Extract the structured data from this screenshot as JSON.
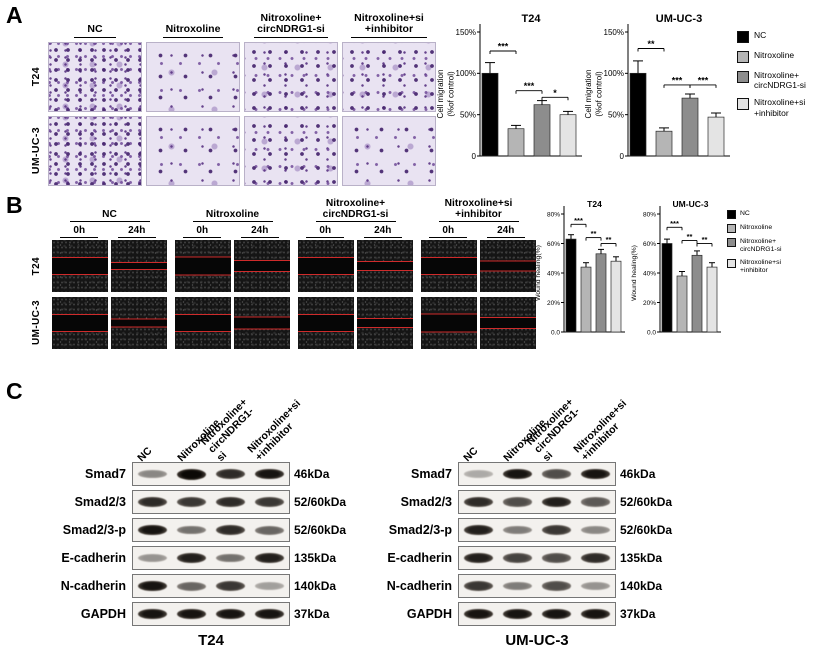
{
  "conditions": [
    "NC",
    "Nitroxoline",
    "Nitroxoline+\ncircNDRG1-si",
    "Nitroxoline+si\n+inhibitor"
  ],
  "cell_lines": [
    "T24",
    "UM-UC-3"
  ],
  "panelA": {
    "label": "A"
  },
  "panelB": {
    "label": "B",
    "timepoints": [
      "0h",
      "24h"
    ]
  },
  "panelC": {
    "label": "C",
    "blots": [
      {
        "protein": "Smad7",
        "kda": "46kDa",
        "t24": [
          0.45,
          1.0,
          0.85,
          0.95
        ],
        "umuc3": [
          0.3,
          0.95,
          0.7,
          0.95
        ]
      },
      {
        "protein": "Smad2/3",
        "kda": "52/60kDa",
        "t24": [
          0.85,
          0.8,
          0.85,
          0.8
        ],
        "umuc3": [
          0.85,
          0.7,
          0.9,
          0.65
        ]
      },
      {
        "protein": "Smad2/3-p",
        "kda": "52/60kDa",
        "t24": [
          0.95,
          0.55,
          0.85,
          0.6
        ],
        "umuc3": [
          0.9,
          0.5,
          0.8,
          0.45
        ]
      },
      {
        "protein": "E-cadherin",
        "kda": "135kDa",
        "t24": [
          0.4,
          0.9,
          0.55,
          0.9
        ],
        "umuc3": [
          0.9,
          0.75,
          0.7,
          0.85
        ]
      },
      {
        "protein": "N-cadherin",
        "kda": "140kDa",
        "t24": [
          0.95,
          0.6,
          0.8,
          0.35
        ],
        "umuc3": [
          0.8,
          0.5,
          0.7,
          0.4
        ]
      },
      {
        "protein": "GAPDH",
        "kda": "37kDa",
        "t24": [
          0.95,
          0.95,
          0.95,
          0.95
        ],
        "umuc3": [
          0.95,
          0.95,
          0.95,
          0.95
        ]
      }
    ]
  },
  "legend": {
    "colors": [
      "#000000",
      "#b5b5b5",
      "#8d8d8d",
      "#e4e4e4"
    ]
  },
  "chart_data": [
    {
      "type": "bar",
      "title": "T24",
      "ylabel": [
        "Cell migration",
        "(%of control)"
      ],
      "xlabel": "",
      "categories": [
        "NC",
        "Nitroxoline",
        "Nitroxoline+circNDRG1-si",
        "Nitroxoline+si+inhibitor"
      ],
      "values": [
        100,
        33,
        62,
        50
      ],
      "errors": [
        13,
        4,
        5,
        4
      ],
      "ymax": 150,
      "grid": false,
      "legend_position": "right",
      "yticks": [
        {
          "v": 0,
          "label": "0"
        },
        {
          "v": 50,
          "label": "50%"
        },
        {
          "v": 100,
          "label": "100%"
        },
        {
          "v": 150,
          "label": "150%"
        }
      ],
      "sig": [
        {
          "i": 0,
          "j": 1,
          "y": 127,
          "label": "***"
        },
        {
          "i": 1,
          "j": 2,
          "y": 79,
          "label": "***"
        },
        {
          "i": 2,
          "j": 3,
          "y": 71,
          "label": "*"
        }
      ]
    },
    {
      "type": "bar",
      "title": "UM-UC-3",
      "ylabel": [
        "Cell migration",
        "(%of control)"
      ],
      "xlabel": "",
      "categories": [
        "NC",
        "Nitroxoline",
        "Nitroxoline+circNDRG1-si",
        "Nitroxoline+si+inhibitor"
      ],
      "values": [
        100,
        30,
        70,
        47
      ],
      "errors": [
        15,
        4,
        5,
        5
      ],
      "ymax": 150,
      "grid": false,
      "legend_position": "right",
      "yticks": [
        {
          "v": 0,
          "label": "0"
        },
        {
          "v": 50,
          "label": "50%"
        },
        {
          "v": 100,
          "label": "100%"
        },
        {
          "v": 150,
          "label": "150%"
        }
      ],
      "sig": [
        {
          "i": 0,
          "j": 1,
          "y": 130,
          "label": "**"
        },
        {
          "i": 1,
          "j": 2,
          "y": 86,
          "label": "***"
        },
        {
          "i": 2,
          "j": 3,
          "y": 86,
          "label": "***"
        }
      ]
    },
    {
      "type": "bar",
      "title": "T24",
      "ylabel": [
        "Wound healing(%)"
      ],
      "xlabel": "",
      "categories": [
        "NC",
        "Nitroxoline",
        "Nitroxoline+circNDRG1-si",
        "Nitroxoline+si+inhibitor"
      ],
      "values": [
        63,
        44,
        53,
        48
      ],
      "errors": [
        3,
        3,
        3,
        3
      ],
      "ymax": 80,
      "grid": false,
      "legend_position": "right",
      "yticks": [
        {
          "v": 0,
          "label": "0.0"
        },
        {
          "v": 20,
          "label": "20%"
        },
        {
          "v": 40,
          "label": "40%"
        },
        {
          "v": 60,
          "label": "60%"
        },
        {
          "v": 80,
          "label": "80%"
        }
      ],
      "sig": [
        {
          "i": 0,
          "j": 1,
          "y": 73,
          "label": "***"
        },
        {
          "i": 1,
          "j": 2,
          "y": 64,
          "label": "**"
        },
        {
          "i": 2,
          "j": 3,
          "y": 60,
          "label": "**"
        }
      ]
    },
    {
      "type": "bar",
      "title": "UM-UC-3",
      "ylabel": [
        "Wound healing(%)"
      ],
      "xlabel": "",
      "categories": [
        "NC",
        "Nitroxoline",
        "Nitroxoline+circNDRG1-si",
        "Nitroxoline+si+inhibitor"
      ],
      "values": [
        60,
        38,
        52,
        44
      ],
      "errors": [
        3,
        3,
        3,
        3
      ],
      "ymax": 80,
      "grid": false,
      "legend_position": "right",
      "yticks": [
        {
          "v": 0,
          "label": "0.0"
        },
        {
          "v": 20,
          "label": "20%"
        },
        {
          "v": 40,
          "label": "40%"
        },
        {
          "v": 60,
          "label": "60%"
        },
        {
          "v": 80,
          "label": "80%"
        }
      ],
      "sig": [
        {
          "i": 0,
          "j": 1,
          "y": 71,
          "label": "***"
        },
        {
          "i": 1,
          "j": 2,
          "y": 62,
          "label": "**"
        },
        {
          "i": 2,
          "j": 3,
          "y": 60,
          "label": "**"
        }
      ]
    }
  ]
}
